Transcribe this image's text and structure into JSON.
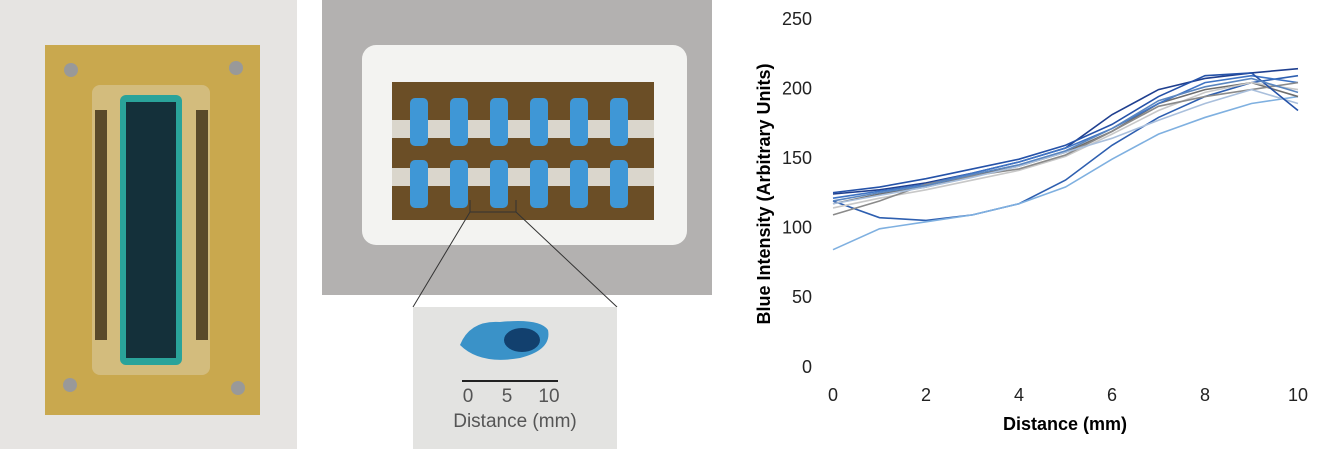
{
  "photo_inset": {
    "scale_ticks": [
      "0",
      "5",
      "10"
    ],
    "scale_label": "Distance (mm)"
  },
  "chart_data": {
    "type": "line",
    "xlabel": "Distance (mm)",
    "ylabel": "Blue Intensity (Arbitrary Units)",
    "x": [
      0,
      1,
      2,
      3,
      4,
      5,
      6,
      7,
      8,
      9,
      10
    ],
    "xlim": [
      0,
      10
    ],
    "xticks": [
      0,
      2,
      4,
      6,
      8,
      10
    ],
    "ylim": [
      0,
      250
    ],
    "yticks": [
      0,
      50,
      100,
      150,
      200,
      250
    ],
    "grid": false,
    "series": [
      {
        "color": "#1f3f8f",
        "values": [
          125,
          128,
          133,
          140,
          148,
          158,
          182,
          200,
          208,
          212,
          215
        ]
      },
      {
        "color": "#2e5fb0",
        "values": [
          120,
          108,
          106,
          110,
          118,
          135,
          160,
          180,
          195,
          205,
          210
        ]
      },
      {
        "color": "#7fb0e0",
        "values": [
          85,
          100,
          105,
          110,
          118,
          130,
          150,
          168,
          180,
          190,
          195
        ]
      },
      {
        "color": "#6e6e6e",
        "values": [
          118,
          125,
          130,
          138,
          145,
          155,
          170,
          190,
          200,
          205,
          195
        ]
      },
      {
        "color": "#c8c8c8",
        "values": [
          115,
          122,
          128,
          135,
          142,
          152,
          168,
          185,
          198,
          205,
          200
        ]
      },
      {
        "color": "#3f74c4",
        "values": [
          122,
          127,
          132,
          140,
          148,
          158,
          172,
          190,
          205,
          210,
          205
        ]
      },
      {
        "color": "#8a8a8a",
        "values": [
          110,
          120,
          132,
          138,
          143,
          153,
          170,
          188,
          195,
          200,
          205
        ]
      },
      {
        "color": "#a9bfdc",
        "values": [
          118,
          124,
          130,
          137,
          145,
          155,
          165,
          178,
          190,
          200,
          190
        ]
      },
      {
        "color": "#2552a8",
        "values": [
          126,
          130,
          136,
          143,
          150,
          160,
          175,
          195,
          210,
          212,
          185
        ]
      },
      {
        "color": "#5a86c0",
        "values": [
          120,
          126,
          131,
          139,
          146,
          156,
          172,
          192,
          202,
          208,
          198
        ]
      }
    ]
  }
}
